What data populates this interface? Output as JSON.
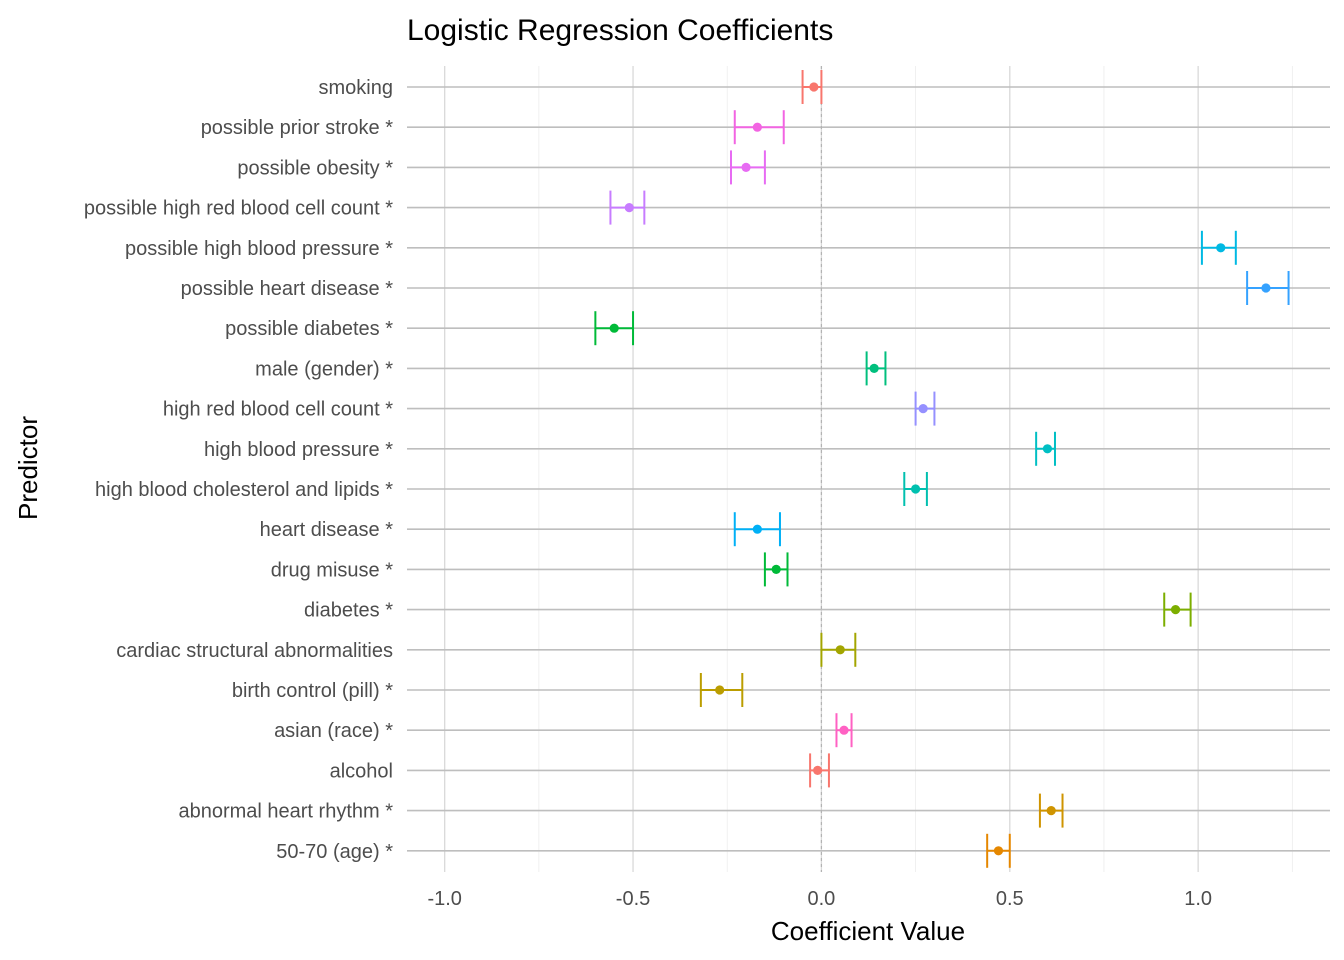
{
  "chart_data": {
    "type": "errorbar",
    "title": "Logistic Regression Coefficients",
    "xlabel": "Coefficient Value",
    "ylabel": "Predictor",
    "xlim": [
      -1.1,
      1.35
    ],
    "xticks": [
      -1.0,
      -0.5,
      0.0,
      0.5,
      1.0
    ],
    "xtick_labels": [
      "-1.0",
      "-0.5",
      "0.0",
      "0.5",
      "1.0"
    ],
    "reference_line": 0,
    "grid": true,
    "legend": "none",
    "points": [
      {
        "label": "smoking",
        "value": -0.02,
        "low": -0.05,
        "high": 0.0,
        "color": "#F8766D"
      },
      {
        "label": "possible prior stroke *",
        "value": -0.17,
        "low": -0.23,
        "high": -0.1,
        "color": "#F264E2"
      },
      {
        "label": "possible obesity *",
        "value": -0.2,
        "low": -0.24,
        "high": -0.15,
        "color": "#E76BF3"
      },
      {
        "label": "possible high red blood cell count *",
        "value": -0.51,
        "low": -0.56,
        "high": -0.47,
        "color": "#C77CFF"
      },
      {
        "label": "possible high blood pressure *",
        "value": 1.06,
        "low": 1.01,
        "high": 1.1,
        "color": "#00B9E3"
      },
      {
        "label": "possible heart disease *",
        "value": 1.18,
        "low": 1.13,
        "high": 1.24,
        "color": "#35A2FF"
      },
      {
        "label": "possible diabetes *",
        "value": -0.55,
        "low": -0.6,
        "high": -0.5,
        "color": "#00BA38"
      },
      {
        "label": "male (gender) *",
        "value": 0.14,
        "low": 0.12,
        "high": 0.17,
        "color": "#00BF7D"
      },
      {
        "label": "high red blood cell count *",
        "value": 0.27,
        "low": 0.25,
        "high": 0.3,
        "color": "#9590FF"
      },
      {
        "label": "high blood pressure *",
        "value": 0.6,
        "low": 0.57,
        "high": 0.62,
        "color": "#00BFC4"
      },
      {
        "label": "high blood cholesterol and lipids *",
        "value": 0.25,
        "low": 0.22,
        "high": 0.28,
        "color": "#00C0AF"
      },
      {
        "label": "heart disease *",
        "value": -0.17,
        "low": -0.23,
        "high": -0.11,
        "color": "#00B0F6"
      },
      {
        "label": "drug misuse *",
        "value": -0.12,
        "low": -0.15,
        "high": -0.09,
        "color": "#00BA38"
      },
      {
        "label": "diabetes *",
        "value": 0.94,
        "low": 0.91,
        "high": 0.98,
        "color": "#7CAE00"
      },
      {
        "label": "cardiac structural abnormalities",
        "value": 0.05,
        "low": 0.0,
        "high": 0.09,
        "color": "#A3A500"
      },
      {
        "label": "birth control (pill) *",
        "value": -0.27,
        "low": -0.32,
        "high": -0.21,
        "color": "#BB9D00"
      },
      {
        "label": "asian (race) *",
        "value": 0.06,
        "low": 0.04,
        "high": 0.08,
        "color": "#FF61C3"
      },
      {
        "label": "alcohol",
        "value": -0.01,
        "low": -0.03,
        "high": 0.02,
        "color": "#F8766D"
      },
      {
        "label": "abnormal heart rhythm *",
        "value": 0.61,
        "low": 0.58,
        "high": 0.64,
        "color": "#CF9400"
      },
      {
        "label": "50-70 (age) *",
        "value": 0.47,
        "low": 0.44,
        "high": 0.5,
        "color": "#E58700"
      }
    ]
  }
}
